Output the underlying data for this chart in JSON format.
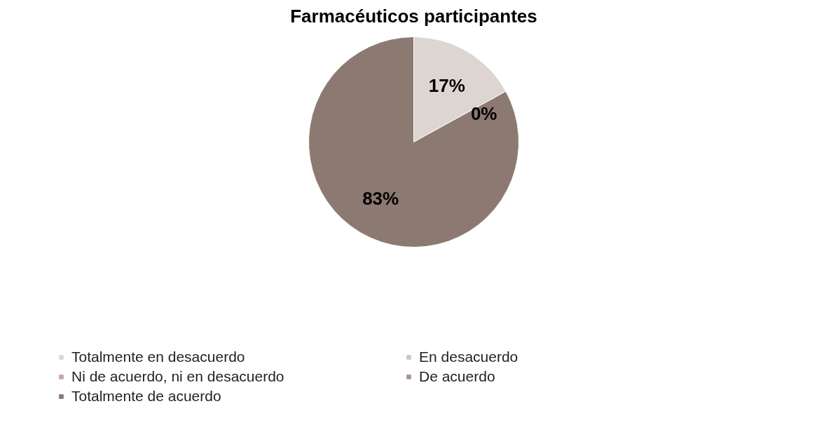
{
  "chart_data": {
    "type": "pie",
    "title": "Farmacéuticos participantes",
    "categories": [
      "Totalmente en desacuerdo",
      "En desacuerdo",
      "Ni de acuerdo, ni en desacuerdo",
      "De acuerdo",
      "Totalmente de acuerdo"
    ],
    "values": [
      17,
      0,
      0,
      0,
      83
    ],
    "colors": [
      "#ddd5d2",
      "#d4c4c0",
      "#c2aaa4",
      "#a89490",
      "#8c7a72"
    ],
    "value_labels": [
      "17%",
      "0%",
      null,
      null,
      "83%"
    ],
    "legend": "bottom"
  }
}
